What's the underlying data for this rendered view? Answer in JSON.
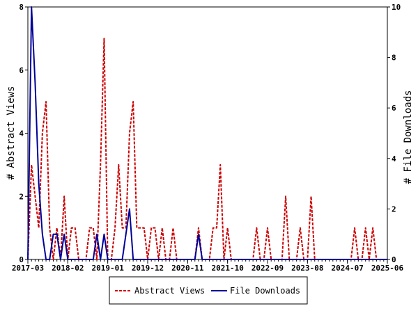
{
  "chart_data": {
    "type": "line",
    "ylabel_left": "# Abstract Views",
    "ylabel_right": "# File Downloads",
    "x_tick_labels": [
      "2017-03",
      "2018-02",
      "2019-01",
      "2019-12",
      "2020-11",
      "2021-10",
      "2022-09",
      "2023-08",
      "2024-07",
      "2025-06"
    ],
    "x_range": [
      "2017-03",
      "2025-06"
    ],
    "ylim_left": [
      0,
      8
    ],
    "ylim_right": [
      0,
      10
    ],
    "yticks_left": [
      "0",
      "2",
      "4",
      "6",
      "8"
    ],
    "yticks_right": [
      "0",
      "2",
      "4",
      "6",
      "8",
      "10"
    ],
    "legend_position": "bottom-center",
    "series": [
      {
        "name": "Abstract Views",
        "axis": "left",
        "color": "#cc0000",
        "style": "dashed",
        "points": [
          [
            "2017-03",
            0
          ],
          [
            "2017-04",
            3
          ],
          [
            "2017-05",
            2
          ],
          [
            "2017-06",
            1
          ],
          [
            "2017-07",
            4
          ],
          [
            "2017-08",
            5
          ],
          [
            "2017-09",
            1
          ],
          [
            "2017-10",
            0
          ],
          [
            "2017-11",
            1
          ],
          [
            "2017-12",
            0
          ],
          [
            "2018-01",
            2
          ],
          [
            "2018-02",
            0
          ],
          [
            "2018-03",
            1
          ],
          [
            "2018-04",
            1
          ],
          [
            "2018-05",
            0
          ],
          [
            "2018-06",
            0
          ],
          [
            "2018-07",
            0
          ],
          [
            "2018-08",
            1
          ],
          [
            "2018-09",
            1
          ],
          [
            "2018-10",
            0
          ],
          [
            "2018-11",
            3
          ],
          [
            "2018-12",
            7
          ],
          [
            "2019-01",
            0
          ],
          [
            "2019-02",
            0
          ],
          [
            "2019-03",
            1
          ],
          [
            "2019-04",
            3
          ],
          [
            "2019-05",
            1
          ],
          [
            "2019-06",
            1
          ],
          [
            "2019-07",
            4
          ],
          [
            "2019-08",
            5
          ],
          [
            "2019-09",
            1
          ],
          [
            "2019-10",
            1
          ],
          [
            "2019-11",
            1
          ],
          [
            "2019-12",
            0
          ],
          [
            "2020-01",
            1
          ],
          [
            "2020-02",
            1
          ],
          [
            "2020-03",
            0
          ],
          [
            "2020-04",
            1
          ],
          [
            "2020-05",
            0
          ],
          [
            "2020-06",
            0
          ],
          [
            "2020-07",
            1
          ],
          [
            "2020-08",
            0
          ],
          [
            "2020-09",
            0
          ],
          [
            "2020-10",
            0
          ],
          [
            "2020-11",
            0
          ],
          [
            "2020-12",
            0
          ],
          [
            "2021-01",
            0
          ],
          [
            "2021-02",
            1
          ],
          [
            "2021-03",
            0
          ],
          [
            "2021-04",
            0
          ],
          [
            "2021-05",
            0
          ],
          [
            "2021-06",
            1
          ],
          [
            "2021-07",
            1
          ],
          [
            "2021-08",
            3
          ],
          [
            "2021-09",
            0
          ],
          [
            "2021-10",
            1
          ],
          [
            "2021-11",
            0
          ],
          [
            "2021-12",
            0
          ],
          [
            "2022-01",
            0
          ],
          [
            "2022-02",
            0
          ],
          [
            "2022-03",
            0
          ],
          [
            "2022-04",
            0
          ],
          [
            "2022-05",
            0
          ],
          [
            "2022-06",
            1
          ],
          [
            "2022-07",
            0
          ],
          [
            "2022-08",
            0
          ],
          [
            "2022-09",
            1
          ],
          [
            "2022-10",
            0
          ],
          [
            "2022-11",
            0
          ],
          [
            "2022-12",
            0
          ],
          [
            "2023-01",
            0
          ],
          [
            "2023-02",
            2
          ],
          [
            "2023-03",
            0
          ],
          [
            "2023-04",
            0
          ],
          [
            "2023-05",
            0
          ],
          [
            "2023-06",
            1
          ],
          [
            "2023-07",
            0
          ],
          [
            "2023-08",
            0
          ],
          [
            "2023-09",
            2
          ],
          [
            "2023-10",
            0
          ],
          [
            "2023-11",
            0
          ],
          [
            "2023-12",
            0
          ],
          [
            "2024-01",
            0
          ],
          [
            "2024-02",
            0
          ],
          [
            "2024-03",
            0
          ],
          [
            "2024-04",
            0
          ],
          [
            "2024-05",
            0
          ],
          [
            "2024-06",
            0
          ],
          [
            "2024-07",
            0
          ],
          [
            "2024-08",
            0
          ],
          [
            "2024-09",
            1
          ],
          [
            "2024-10",
            0
          ],
          [
            "2024-11",
            0
          ],
          [
            "2024-12",
            1
          ],
          [
            "2025-01",
            0
          ],
          [
            "2025-02",
            1
          ],
          [
            "2025-03",
            0
          ],
          [
            "2025-04",
            0
          ],
          [
            "2025-05",
            0
          ],
          [
            "2025-06",
            0
          ]
        ]
      },
      {
        "name": "File Downloads",
        "axis": "right",
        "color": "#000099",
        "style": "solid",
        "points": [
          [
            "2017-03",
            0
          ],
          [
            "2017-04",
            10
          ],
          [
            "2017-05",
            7
          ],
          [
            "2017-06",
            3
          ],
          [
            "2017-07",
            1
          ],
          [
            "2017-08",
            0
          ],
          [
            "2017-09",
            0
          ],
          [
            "2017-10",
            1
          ],
          [
            "2017-11",
            1
          ],
          [
            "2017-12",
            0
          ],
          [
            "2018-01",
            1
          ],
          [
            "2018-02",
            0
          ],
          [
            "2018-03",
            0
          ],
          [
            "2018-04",
            0
          ],
          [
            "2018-05",
            0
          ],
          [
            "2018-06",
            0
          ],
          [
            "2018-07",
            0
          ],
          [
            "2018-08",
            0
          ],
          [
            "2018-09",
            0
          ],
          [
            "2018-10",
            1
          ],
          [
            "2018-11",
            0
          ],
          [
            "2018-12",
            1
          ],
          [
            "2019-01",
            0
          ],
          [
            "2019-02",
            0
          ],
          [
            "2019-03",
            0
          ],
          [
            "2019-04",
            0
          ],
          [
            "2019-05",
            0
          ],
          [
            "2019-06",
            1
          ],
          [
            "2019-07",
            2
          ],
          [
            "2019-08",
            0
          ],
          [
            "2019-09",
            0
          ],
          [
            "2019-10",
            0
          ],
          [
            "2019-11",
            0
          ],
          [
            "2019-12",
            0
          ],
          [
            "2020-01",
            0
          ],
          [
            "2020-02",
            0
          ],
          [
            "2020-03",
            0
          ],
          [
            "2020-04",
            0
          ],
          [
            "2020-05",
            0
          ],
          [
            "2020-06",
            0
          ],
          [
            "2020-07",
            0
          ],
          [
            "2020-08",
            0
          ],
          [
            "2020-09",
            0
          ],
          [
            "2020-10",
            0
          ],
          [
            "2020-11",
            0
          ],
          [
            "2020-12",
            0
          ],
          [
            "2021-01",
            0
          ],
          [
            "2021-02",
            1
          ],
          [
            "2021-03",
            0
          ],
          [
            "2021-04",
            0
          ],
          [
            "2021-05",
            0
          ],
          [
            "2021-06",
            0
          ],
          [
            "2021-07",
            0
          ],
          [
            "2021-08",
            0
          ],
          [
            "2021-09",
            0
          ],
          [
            "2021-10",
            0
          ],
          [
            "2021-11",
            0
          ],
          [
            "2021-12",
            0
          ],
          [
            "2022-01",
            0
          ],
          [
            "2022-02",
            0
          ],
          [
            "2022-03",
            0
          ],
          [
            "2022-04",
            0
          ],
          [
            "2022-05",
            0
          ],
          [
            "2022-06",
            0
          ],
          [
            "2022-07",
            0
          ],
          [
            "2022-08",
            0
          ],
          [
            "2022-09",
            0
          ],
          [
            "2022-10",
            0
          ],
          [
            "2022-11",
            0
          ],
          [
            "2022-12",
            0
          ],
          [
            "2023-01",
            0
          ],
          [
            "2023-02",
            0
          ],
          [
            "2023-03",
            0
          ],
          [
            "2023-04",
            0
          ],
          [
            "2023-05",
            0
          ],
          [
            "2023-06",
            0
          ],
          [
            "2023-07",
            0
          ],
          [
            "2023-08",
            0
          ],
          [
            "2023-09",
            0
          ],
          [
            "2023-10",
            0
          ],
          [
            "2023-11",
            0
          ],
          [
            "2023-12",
            0
          ],
          [
            "2024-01",
            0
          ],
          [
            "2024-02",
            0
          ],
          [
            "2024-03",
            0
          ],
          [
            "2024-04",
            0
          ],
          [
            "2024-05",
            0
          ],
          [
            "2024-06",
            0
          ],
          [
            "2024-07",
            0
          ],
          [
            "2024-08",
            0
          ],
          [
            "2024-09",
            0
          ],
          [
            "2024-10",
            0
          ],
          [
            "2024-11",
            0
          ],
          [
            "2024-12",
            0
          ],
          [
            "2025-01",
            0
          ],
          [
            "2025-02",
            0
          ],
          [
            "2025-03",
            0
          ],
          [
            "2025-04",
            0
          ],
          [
            "2025-05",
            0
          ],
          [
            "2025-06",
            0
          ]
        ]
      }
    ]
  }
}
